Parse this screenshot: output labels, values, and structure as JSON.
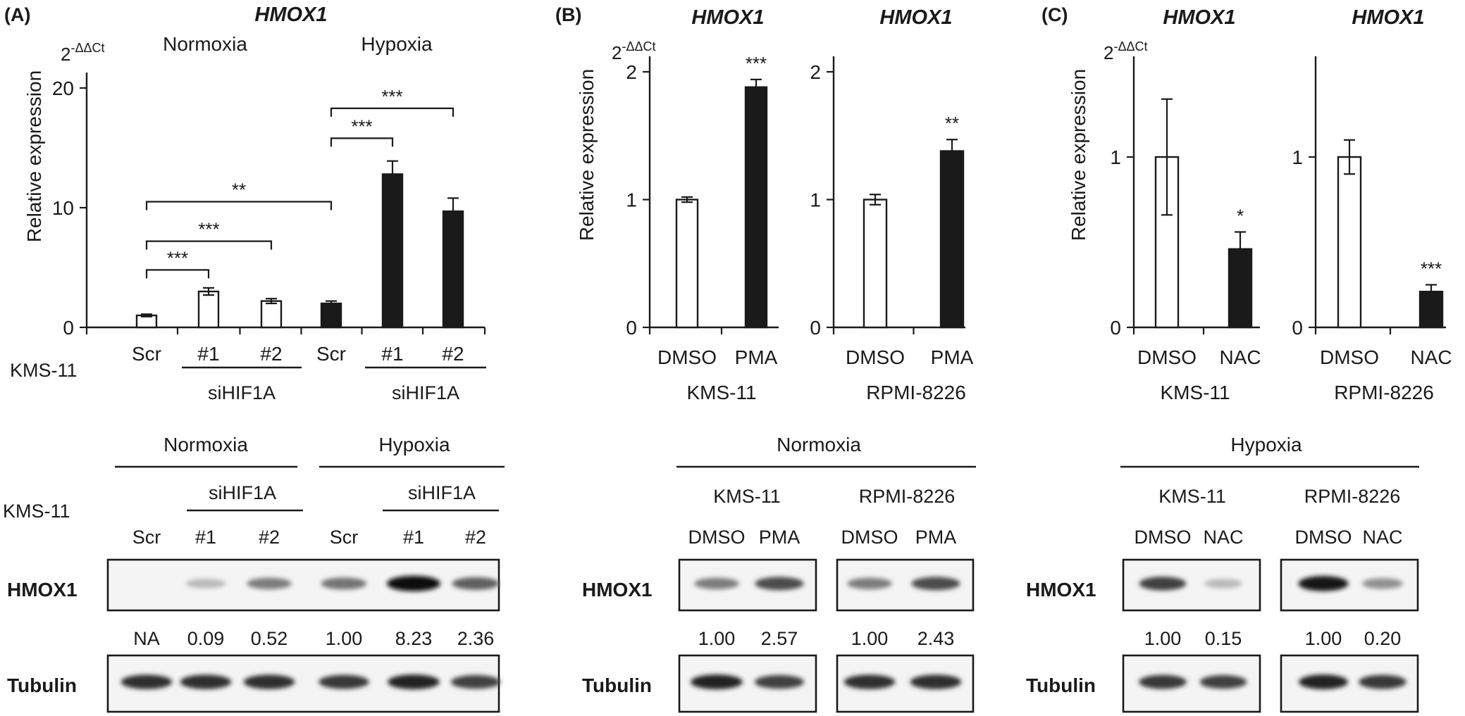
{
  "panel_labels": {
    "a": "(A)",
    "b": "(B)",
    "c": "(C)"
  },
  "gene": "HMOX1",
  "ylabel": "Relative expression",
  "ddct_base": "2",
  "ddct_exp": "-ΔΔCt",
  "kms_row_label": "KMS-11",
  "chart_data": [
    {
      "id": "A",
      "type": "bar",
      "title": "HMOX1",
      "ylabel": "Relative expression",
      "ylim": [
        0,
        20
      ],
      "yticks": [
        0,
        10,
        20
      ],
      "categories": [
        "Scr",
        "#1",
        "#2",
        "Scr",
        "#1",
        "#2"
      ],
      "values": [
        1.0,
        3.0,
        2.2,
        2.0,
        12.8,
        9.7
      ],
      "errors": [
        0.1,
        0.3,
        0.2,
        0.2,
        1.1,
        1.1
      ],
      "fills": [
        "#ffffff",
        "#ffffff",
        "#ffffff",
        "#1a1a1a",
        "#1a1a1a",
        "#1a1a1a"
      ],
      "group_labels": [
        "Normoxia",
        "Hypoxia"
      ],
      "sub_labels": [
        "siHIF1A",
        "siHIF1A"
      ],
      "significance": [
        {
          "from": 0,
          "to": 1,
          "label": "***",
          "level": 4.8
        },
        {
          "from": 0,
          "to": 2,
          "label": "***",
          "level": 7.2
        },
        {
          "from": 0,
          "to": 3,
          "label": "**",
          "level": 10.5
        },
        {
          "from": 3,
          "to": 4,
          "label": "***",
          "level": 15.8
        },
        {
          "from": 3,
          "to": 5,
          "label": "***",
          "level": 18.3
        }
      ]
    },
    {
      "id": "B1",
      "type": "bar",
      "title": "HMOX1",
      "ylabel": "Relative expression",
      "ylim": [
        0,
        2
      ],
      "yticks": [
        0,
        1,
        2
      ],
      "categories": [
        "DMSO",
        "PMA"
      ],
      "values": [
        1.0,
        1.88
      ],
      "errors": [
        0.02,
        0.06
      ],
      "fills": [
        "#ffffff",
        "#1a1a1a"
      ],
      "sig": [
        "",
        "***"
      ],
      "cell_line": "KMS-11"
    },
    {
      "id": "B2",
      "type": "bar",
      "title": "HMOX1",
      "ylim": [
        0,
        2
      ],
      "yticks": [
        0,
        1,
        2
      ],
      "categories": [
        "DMSO",
        "PMA"
      ],
      "values": [
        1.0,
        1.38
      ],
      "errors": [
        0.04,
        0.09
      ],
      "fills": [
        "#ffffff",
        "#1a1a1a"
      ],
      "sig": [
        "",
        "**"
      ],
      "cell_line": "RPMI-8226"
    },
    {
      "id": "C1",
      "type": "bar",
      "title": "HMOX1",
      "ylabel": "Relative expression",
      "ylim": [
        0,
        1.5
      ],
      "yticks": [
        0,
        1
      ],
      "categories": [
        "DMSO",
        "NAC"
      ],
      "values": [
        1.0,
        0.46
      ],
      "errors": [
        0.34,
        0.1
      ],
      "fills": [
        "#ffffff",
        "#1a1a1a"
      ],
      "sig": [
        "",
        "*"
      ],
      "cell_line": "KMS-11"
    },
    {
      "id": "C2",
      "type": "bar",
      "title": "HMOX1",
      "ylim": [
        0,
        1.5
      ],
      "yticks": [
        0,
        1
      ],
      "categories": [
        "DMSO",
        "NAC"
      ],
      "values": [
        1.0,
        0.21
      ],
      "errors": [
        0.1,
        0.04
      ],
      "fills": [
        "#ffffff",
        "#1a1a1a"
      ],
      "sig": [
        "",
        "***"
      ],
      "cell_line": "RPMI-8226"
    }
  ],
  "blots": {
    "row_hmox1": "HMOX1",
    "row_tubulin": "Tubulin",
    "A": {
      "group_labels": [
        "Normoxia",
        "Hypoxia"
      ],
      "sub_labels": [
        "siHIF1A",
        "siHIF1A"
      ],
      "lanes": [
        "Scr",
        "#1",
        "#2",
        "Scr",
        "#1",
        "#2"
      ],
      "hmox1_intensity": [
        0.0,
        0.15,
        0.45,
        0.5,
        1.0,
        0.6
      ],
      "quant": [
        "NA",
        "0.09",
        "0.52",
        "1.00",
        "8.23",
        "2.36"
      ]
    },
    "B": {
      "header": "Normoxia",
      "cell_lines": [
        "KMS-11",
        "RPMI-8226"
      ],
      "lanes": [
        "DMSO",
        "PMA",
        "DMSO",
        "PMA"
      ],
      "hmox1_intensity": [
        0.45,
        0.7,
        0.45,
        0.7
      ],
      "quant": [
        "1.00",
        "2.57",
        "1.00",
        "2.43"
      ]
    },
    "C": {
      "header": "Hypoxia",
      "cell_lines": [
        "KMS-11",
        "RPMI-8226"
      ],
      "lanes": [
        "DMSO",
        "NAC",
        "DMSO",
        "NAC"
      ],
      "hmox1_intensity": [
        0.75,
        0.15,
        0.95,
        0.35
      ],
      "quant": [
        "1.00",
        "0.15",
        "1.00",
        "0.20"
      ]
    }
  }
}
